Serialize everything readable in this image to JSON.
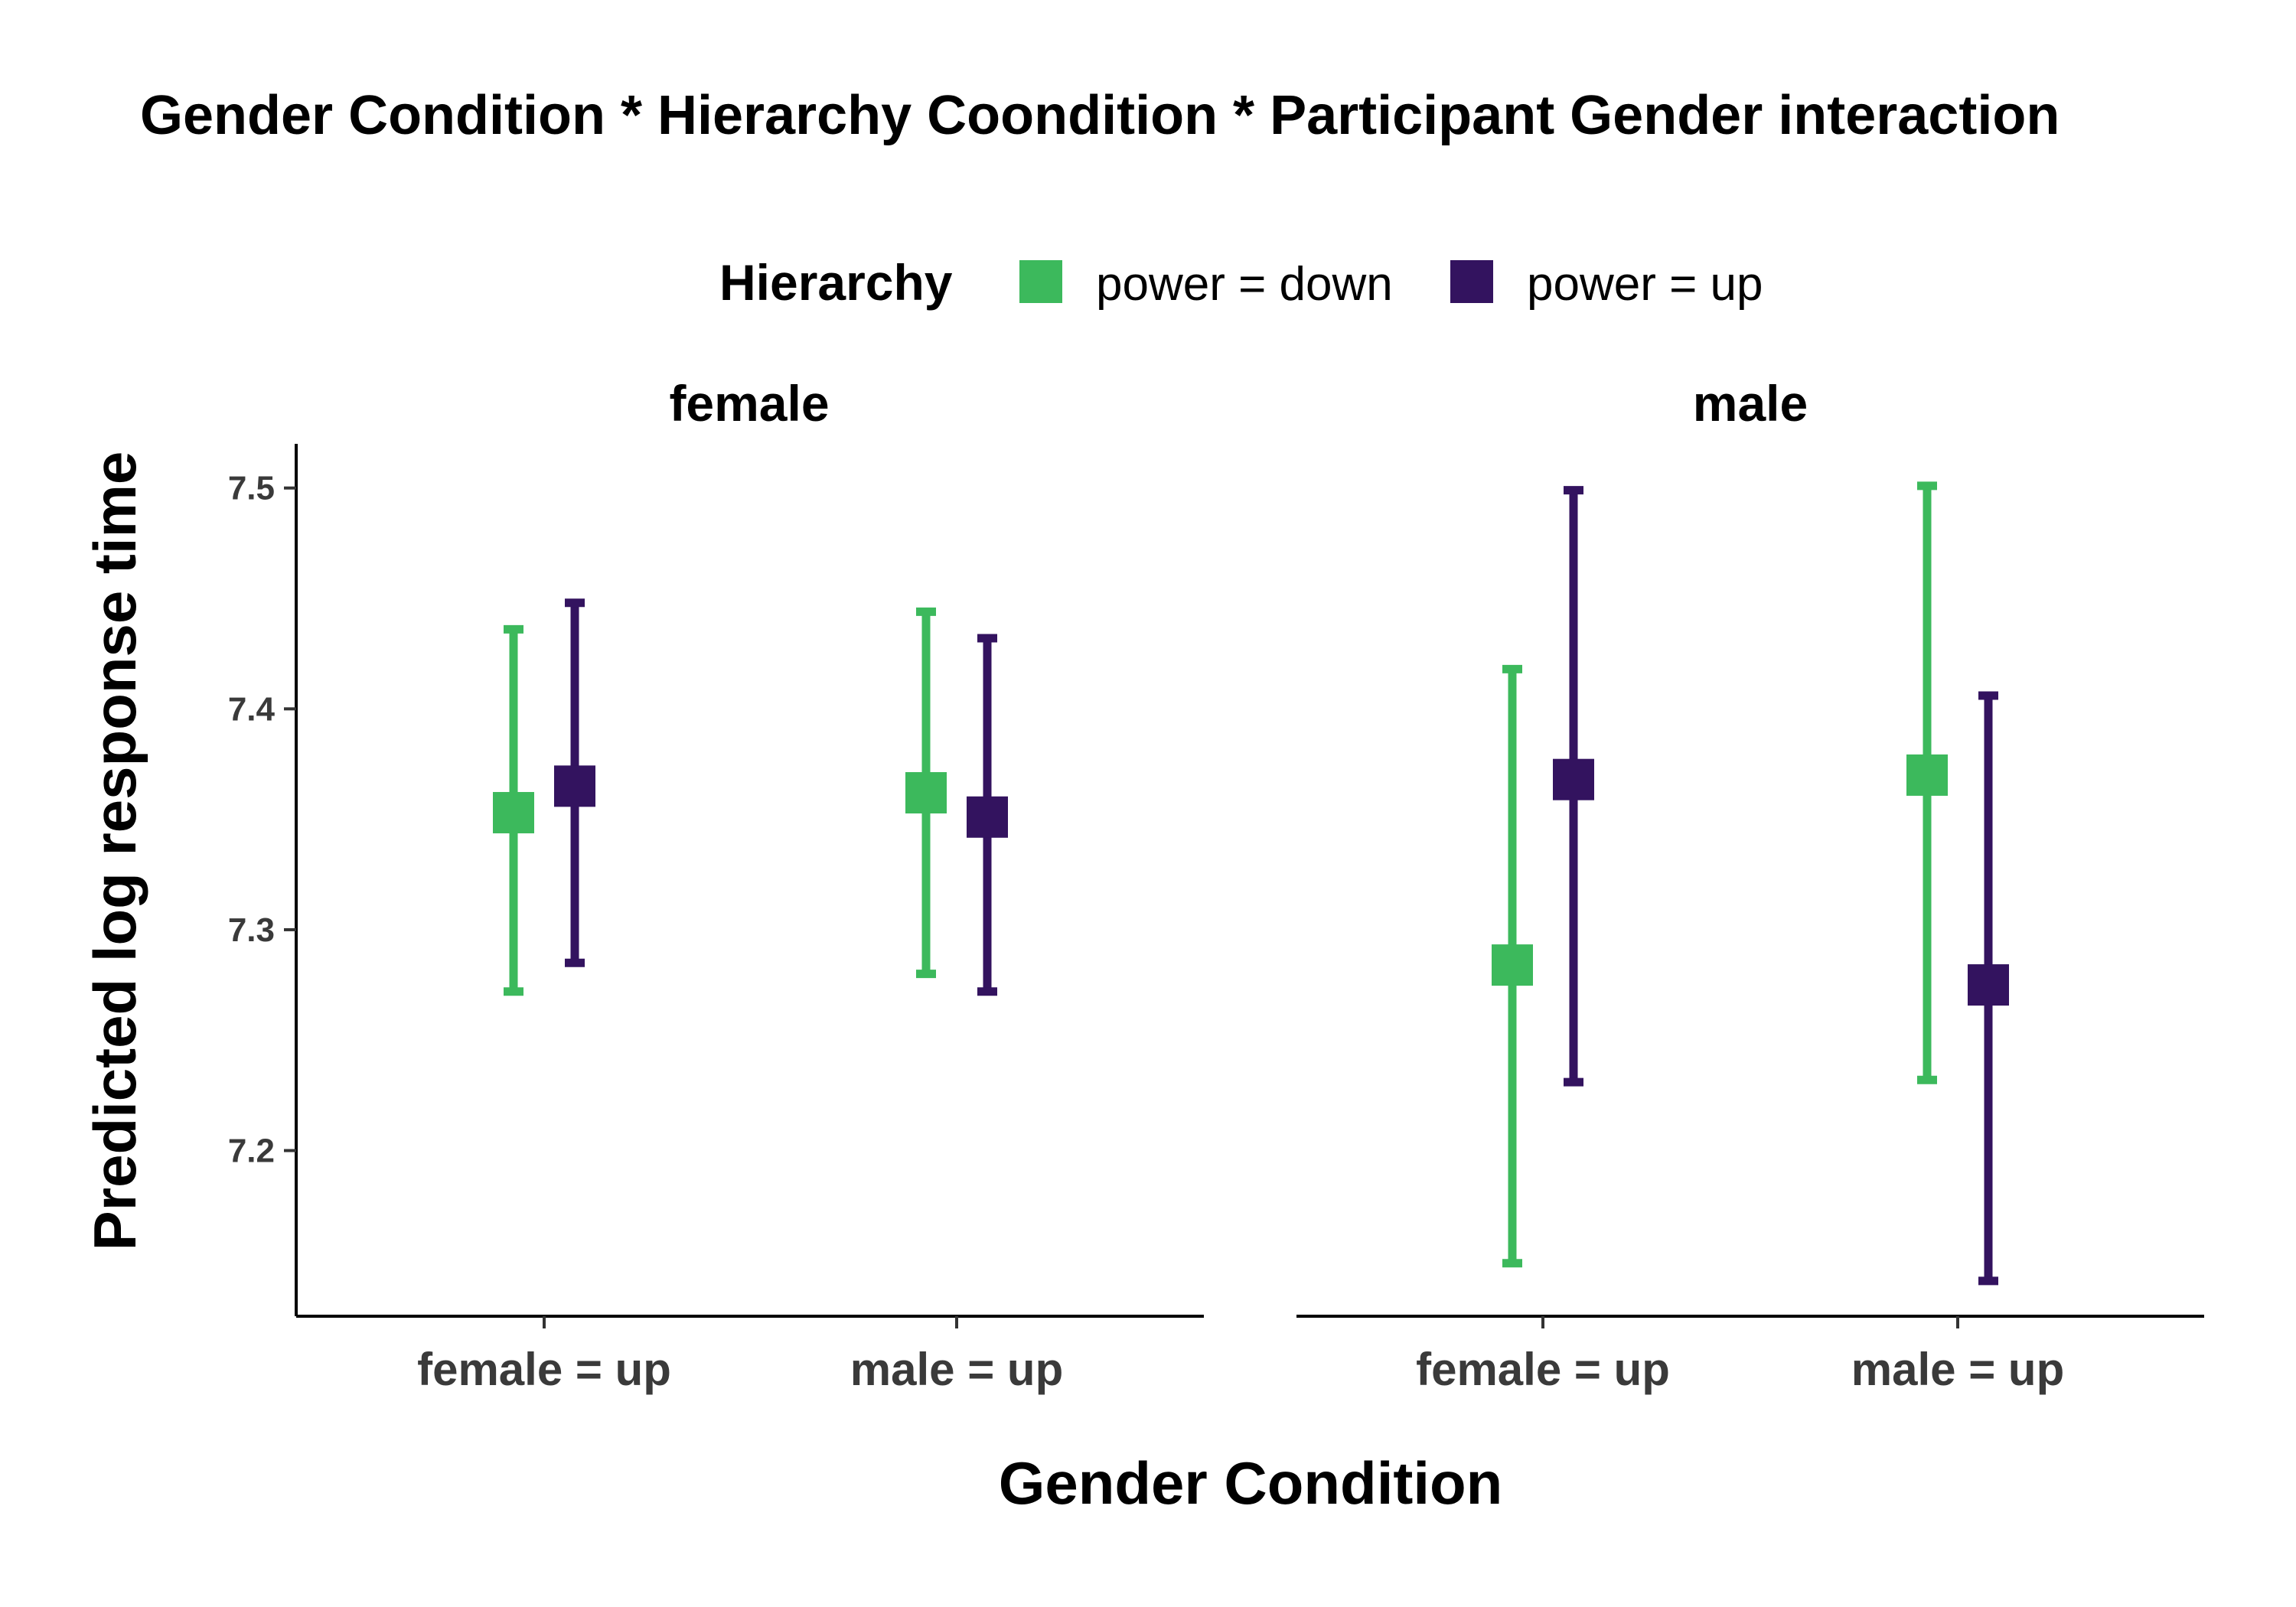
{
  "chart_data": {
    "type": "scatter",
    "title": "Gender Condition * Hierarchy Coondition * Participant Gender interaction",
    "xlabel": "Gender Condition",
    "ylabel": "Predicted log response time",
    "ylim": [
      7.125,
      7.52
    ],
    "yticks": [
      "7.2",
      "7.3",
      "7.4",
      "7.5"
    ],
    "categories": [
      "female = up",
      "male = up"
    ],
    "legend": {
      "title": "Hierarchy",
      "position": "top"
    },
    "grid": false,
    "series": [
      {
        "name": "power = down",
        "color": "#3cb95c"
      },
      {
        "name": "power = up",
        "color": "#33135f"
      }
    ],
    "facets": [
      {
        "label": "female",
        "points": [
          {
            "category": "female = up",
            "series": "power = down",
            "y": 7.353,
            "ymin": 7.272,
            "ymax": 7.436
          },
          {
            "category": "female = up",
            "series": "power = up",
            "y": 7.365,
            "ymin": 7.285,
            "ymax": 7.448
          },
          {
            "category": "male = up",
            "series": "power = down",
            "y": 7.362,
            "ymin": 7.28,
            "ymax": 7.444
          },
          {
            "category": "male = up",
            "series": "power = up",
            "y": 7.351,
            "ymin": 7.272,
            "ymax": 7.432
          }
        ]
      },
      {
        "label": "male",
        "points": [
          {
            "category": "female = up",
            "series": "power = down",
            "y": 7.284,
            "ymin": 7.149,
            "ymax": 7.418
          },
          {
            "category": "female = up",
            "series": "power = up",
            "y": 7.368,
            "ymin": 7.231,
            "ymax": 7.499
          },
          {
            "category": "male = up",
            "series": "power = down",
            "y": 7.37,
            "ymin": 7.232,
            "ymax": 7.501
          },
          {
            "category": "male = up",
            "series": "power = up",
            "y": 7.275,
            "ymin": 7.141,
            "ymax": 7.406
          }
        ]
      }
    ]
  }
}
